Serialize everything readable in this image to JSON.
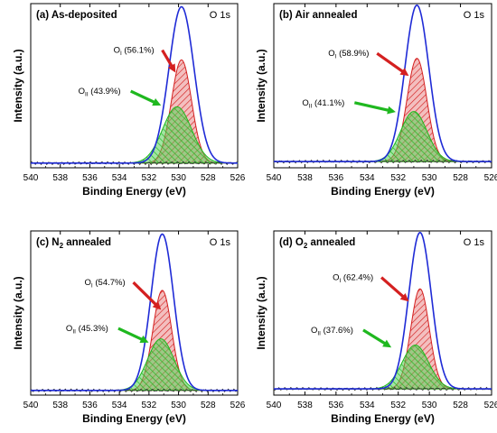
{
  "figure": {
    "peak_label": "O 1s",
    "xlabel": "Binding Energy (eV)",
    "ylabel": "Intensity (a.u.)",
    "x_ticks": [
      540,
      538,
      536,
      534,
      532,
      530,
      528,
      526
    ]
  },
  "colors": {
    "envelope": "#1f2bd6",
    "ol_line": "#d42020",
    "ol_fill": "#e88a8a",
    "oii_line": "#1fb81f",
    "oii_fill": "#58d058",
    "background_line": "#333333"
  },
  "chart_data": [
    {
      "type": "line",
      "title": "(a) As-deposited",
      "xlabel": "Binding Energy (eV)",
      "ylabel": "Intensity (a.u.)",
      "xlim": [
        540,
        526
      ],
      "ylim": [
        0,
        1.05
      ],
      "x_reversed": true,
      "background_level": 0.03,
      "series": [
        {
          "name": "OI",
          "label_sub": "I",
          "label_pct": " (56.1%)",
          "center": 529.8,
          "fwhm": 1.6,
          "height": 0.66
        },
        {
          "name": "OII",
          "label_sub": "II",
          "label_pct": " (43.9%)",
          "center": 530.1,
          "fwhm": 2.3,
          "height": 0.36
        },
        {
          "name": "Envelope",
          "center": 529.8,
          "fwhm": 2.0,
          "height": 1.0
        }
      ]
    },
    {
      "type": "line",
      "title": "(b) Air annealed",
      "xlabel": "Binding Energy (eV)",
      "ylabel": "Intensity (a.u.)",
      "xlim": [
        540,
        526
      ],
      "ylim": [
        0,
        1.05
      ],
      "x_reversed": true,
      "background_level": 0.04,
      "series": [
        {
          "name": "OI",
          "label_sub": "I",
          "label_pct": " (58.9%)",
          "center": 530.8,
          "fwhm": 1.5,
          "height": 0.66
        },
        {
          "name": "OII",
          "label_sub": "II",
          "label_pct": " (41.1%)",
          "center": 531.0,
          "fwhm": 2.0,
          "height": 0.32
        },
        {
          "name": "Envelope",
          "center": 530.8,
          "fwhm": 1.8,
          "height": 1.0
        }
      ]
    },
    {
      "type": "line",
      "title": "(c) N2 annealed",
      "title_main": "(c) N",
      "title_sub": "2",
      "title_rest": " annealed",
      "xlabel": "Binding Energy (eV)",
      "ylabel": "Intensity (a.u.)",
      "xlim": [
        540,
        526
      ],
      "ylim": [
        0,
        1.05
      ],
      "x_reversed": true,
      "background_level": 0.03,
      "series": [
        {
          "name": "OI",
          "label_sub": "I",
          "label_pct": " (54.7%)",
          "center": 531.1,
          "fwhm": 1.5,
          "height": 0.64
        },
        {
          "name": "OII",
          "label_sub": "II",
          "label_pct": " (45.3%)",
          "center": 531.2,
          "fwhm": 2.1,
          "height": 0.33
        },
        {
          "name": "Envelope",
          "center": 531.1,
          "fwhm": 1.8,
          "height": 1.0
        }
      ]
    },
    {
      "type": "line",
      "title": "(d) O2 annealed",
      "title_main": "(d) O",
      "title_sub": "2",
      "title_rest": " annealed",
      "xlabel": "Binding Energy (eV)",
      "ylabel": "Intensity (a.u.)",
      "xlim": [
        540,
        526
      ],
      "ylim": [
        0,
        1.05
      ],
      "x_reversed": true,
      "background_level": 0.04,
      "series": [
        {
          "name": "OI",
          "label_sub": "I",
          "label_pct": " (62.4%)",
          "center": 530.6,
          "fwhm": 1.4,
          "height": 0.64
        },
        {
          "name": "OII",
          "label_sub": "II",
          "label_pct": " (37.6%)",
          "center": 530.9,
          "fwhm": 2.0,
          "height": 0.28
        },
        {
          "name": "Envelope",
          "center": 530.6,
          "fwhm": 1.7,
          "height": 1.0
        }
      ]
    }
  ]
}
